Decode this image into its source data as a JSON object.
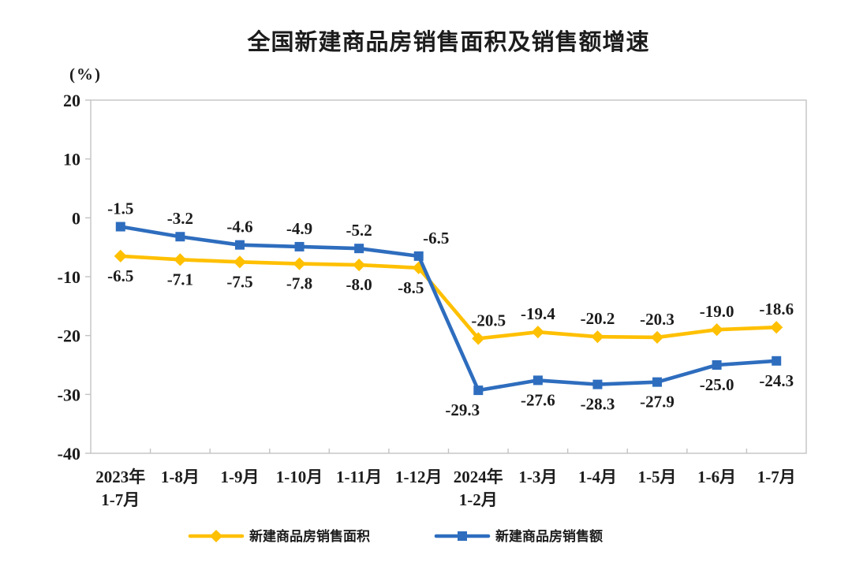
{
  "title": "全国新建商品房销售面积及销售额增速",
  "chart_data": {
    "type": "line",
    "title": "全国新建商品房销售面积及销售额增速",
    "ylabel": "(%)",
    "ylim": [
      -40,
      20
    ],
    "yticks": [
      20,
      10,
      0,
      -10,
      -20,
      -30,
      -40
    ],
    "grid": false,
    "legend_position": "bottom",
    "axis_color": "#C3C3C3",
    "label_color": "#1C1C1C",
    "categories": [
      "2023年\n1-7月",
      "1-8月",
      "1-9月",
      "1-10月",
      "1-11月",
      "1-12月",
      "2024年\n1-2月",
      "1-3月",
      "1-4月",
      "1-5月",
      "1-6月",
      "1-7月"
    ],
    "series": [
      {
        "id": "sales-area",
        "name": "新建商品房销售面积",
        "color": "#FFC000",
        "marker": "diamond",
        "values": [
          -6.5,
          -7.1,
          -7.5,
          -7.8,
          -8.0,
          -8.5,
          -20.5,
          -19.4,
          -20.2,
          -20.3,
          -19.0,
          -18.6
        ],
        "label_sides": [
          "below",
          "below",
          "below",
          "below",
          "below",
          "below",
          "above",
          "above",
          "above",
          "above",
          "above",
          "above"
        ]
      },
      {
        "id": "sales-amount",
        "name": "新建商品房销售额",
        "color": "#2E6DBE",
        "marker": "square",
        "values": [
          -1.5,
          -3.2,
          -4.6,
          -4.9,
          -5.2,
          -6.5,
          -29.3,
          -27.6,
          -28.3,
          -27.9,
          -25.0,
          -24.3
        ],
        "label_sides": [
          "above",
          "above",
          "above",
          "above",
          "above",
          "above",
          "below",
          "below",
          "below",
          "below",
          "below",
          "below"
        ]
      }
    ]
  }
}
